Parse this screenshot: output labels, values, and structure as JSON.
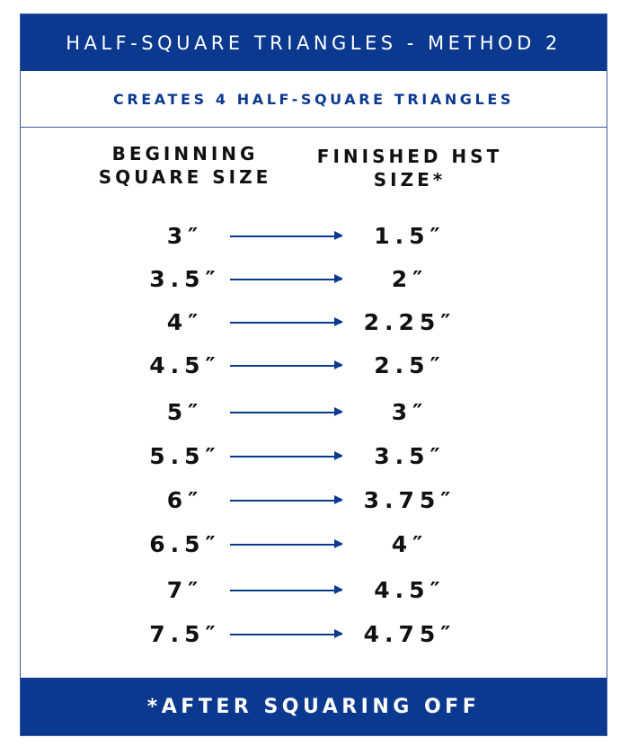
{
  "title": "HALF-SQUARE TRIANGLES - METHOD 2",
  "subtitle": "CREATES 4 HALF-SQUARE TRIANGLES",
  "columns": {
    "beginning": "BEGINNING SQUARE SIZE",
    "finished": "FINISHED HST SIZE*"
  },
  "rows": [
    {
      "beginning": "3″",
      "finished": "1.5″"
    },
    {
      "beginning": "3.5″",
      "finished": "2″"
    },
    {
      "beginning": "4″",
      "finished": "2.25″"
    },
    {
      "beginning": "4.5″",
      "finished": "2.5″"
    },
    {
      "beginning": "5″",
      "finished": "3″"
    },
    {
      "beginning": "5.5″",
      "finished": "3.5″"
    },
    {
      "beginning": "6″",
      "finished": "3.75″"
    },
    {
      "beginning": "6.5″",
      "finished": "4″"
    },
    {
      "beginning": "7″",
      "finished": "4.5″"
    },
    {
      "beginning": "7.5″",
      "finished": "4.75″"
    }
  ],
  "footer": "*AFTER SQUARING OFF",
  "colors": {
    "accent": "#0b3990"
  }
}
